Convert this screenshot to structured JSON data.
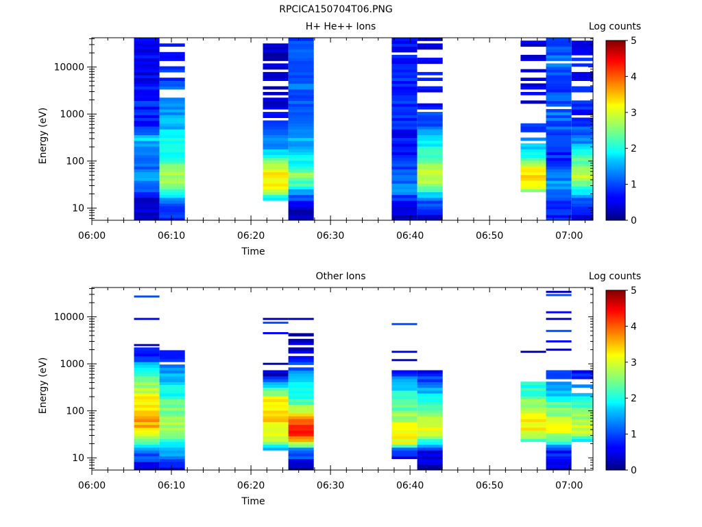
{
  "page": {
    "title": "RPCICA150704T06.PNG"
  },
  "chart_data": [
    {
      "type": "heatmap",
      "title": "H+ He++ Ions",
      "xlabel": "Time",
      "ylabel": "Energy (eV)",
      "x_ticks": [
        "06:00",
        "06:10",
        "06:20",
        "06:30",
        "06:40",
        "06:50",
        "07:00"
      ],
      "y_ticks": [
        "10",
        "100",
        "1000",
        "10000"
      ],
      "y_scale": "log",
      "ylim": [
        5.5,
        42000
      ],
      "x_range_minutes": [
        0,
        63
      ],
      "colorbar": {
        "label": "Log counts",
        "ticks": [
          "0",
          "1",
          "2",
          "3",
          "4",
          "5"
        ],
        "range": [
          0,
          5
        ],
        "colormap": "jet"
      },
      "columns": [
        {
          "t0": 5.3,
          "t1": 8.5,
          "profile": [
            [
              5.5,
              0.3
            ],
            [
              16,
              0.4
            ],
            [
              25,
              1.1
            ],
            [
              40,
              1.3
            ],
            [
              100,
              1.15
            ],
            [
              300,
              1.6
            ],
            [
              700,
              0.7
            ],
            [
              2000,
              0.8
            ],
            [
              5000,
              0.6
            ],
            [
              40000,
              0.5
            ]
          ],
          "gap_prob": 0.0,
          "above": 0
        },
        {
          "t0": 8.5,
          "t1": 11.7,
          "profile": [
            [
              5.5,
              0.6
            ],
            [
              12,
              1.1
            ],
            [
              20,
              1.9
            ],
            [
              35,
              2.7
            ],
            [
              70,
              2.8
            ],
            [
              120,
              2.1
            ],
            [
              250,
              1.9
            ],
            [
              800,
              1.4
            ],
            [
              2000,
              1.1
            ],
            [
              8000,
              0.9
            ],
            [
              40000,
              0.7
            ]
          ],
          "gap_prob": 0.45,
          "above": 2000
        },
        {
          "t0": 21.5,
          "t1": 24.7,
          "profile": [
            [
              15,
              1.6
            ],
            [
              25,
              2.9
            ],
            [
              45,
              3.3
            ],
            [
              70,
              3.1
            ],
            [
              110,
              2.2
            ],
            [
              200,
              1.4
            ],
            [
              500,
              0.8
            ],
            [
              1500,
              0.5
            ],
            [
              5000,
              0.4
            ],
            [
              40000,
              0.3
            ]
          ],
          "gap_prob": 0.45,
          "above": 700
        },
        {
          "t0": 24.7,
          "t1": 27.9,
          "profile": [
            [
              5.5,
              0.2
            ],
            [
              10,
              0.4
            ],
            [
              20,
              1.2
            ],
            [
              30,
              2.2
            ],
            [
              50,
              2.6
            ],
            [
              100,
              1.9
            ],
            [
              200,
              1.6
            ],
            [
              500,
              1.3
            ],
            [
              1500,
              1.1
            ],
            [
              5000,
              1.1
            ],
            [
              40000,
              1.0
            ]
          ],
          "gap_prob": 0.0,
          "above": 0
        },
        {
          "t0": 37.7,
          "t1": 40.9,
          "profile": [
            [
              5.5,
              0.3
            ],
            [
              15,
              0.8
            ],
            [
              25,
              1.3
            ],
            [
              40,
              1.1
            ],
            [
              80,
              0.9
            ],
            [
              200,
              0.7
            ],
            [
              500,
              0.7
            ],
            [
              2000,
              0.8
            ],
            [
              8000,
              0.8
            ],
            [
              40000,
              0.7
            ]
          ],
          "gap_prob": 0.12,
          "above": 1500
        },
        {
          "t0": 40.9,
          "t1": 44.1,
          "profile": [
            [
              5.5,
              0.2
            ],
            [
              16,
              1.2
            ],
            [
              30,
              2.8
            ],
            [
              60,
              3.0
            ],
            [
              110,
              2.3
            ],
            [
              250,
              1.7
            ],
            [
              700,
              0.9
            ],
            [
              2000,
              0.7
            ],
            [
              8000,
              0.6
            ],
            [
              40000,
              0.5
            ]
          ],
          "gap_prob": 0.45,
          "above": 1000
        },
        {
          "t0": 53.9,
          "t1": 57.1,
          "profile": [
            [
              21,
              2.0
            ],
            [
              30,
              3.2
            ],
            [
              50,
              3.4
            ],
            [
              80,
              3.0
            ],
            [
              130,
              2.0
            ],
            [
              250,
              1.4
            ],
            [
              600,
              0.8
            ],
            [
              2000,
              0.5
            ],
            [
              8000,
              0.4
            ],
            [
              40000,
              0.4
            ]
          ],
          "gap_prob": 0.5,
          "above": 250
        },
        {
          "t0": 57.1,
          "t1": 60.3,
          "profile": [
            [
              5.5,
              0.8
            ],
            [
              15,
              1.0
            ],
            [
              30,
              1.4
            ],
            [
              60,
              1.2
            ],
            [
              100,
              0.8
            ],
            [
              300,
              0.9
            ],
            [
              1000,
              1.2
            ],
            [
              3000,
              1.0
            ],
            [
              10000,
              1.1
            ],
            [
              40000,
              1.0
            ]
          ],
          "gap_prob": 0.15,
          "above": 1000
        },
        {
          "t0": 60.3,
          "t1": 63.0,
          "profile": [
            [
              5.5,
              0.3
            ],
            [
              15,
              0.9
            ],
            [
              20,
              1.8
            ],
            [
              35,
              2.6
            ],
            [
              60,
              2.9
            ],
            [
              100,
              2.4
            ],
            [
              200,
              1.5
            ],
            [
              600,
              0.9
            ],
            [
              2000,
              0.7
            ],
            [
              8000,
              0.7
            ],
            [
              40000,
              0.6
            ]
          ],
          "gap_prob": 0.35,
          "above": 300
        }
      ]
    },
    {
      "type": "heatmap",
      "title": "Other Ions",
      "xlabel": "Time",
      "ylabel": "Energy (eV)",
      "x_ticks": [
        "06:00",
        "06:10",
        "06:20",
        "06:30",
        "06:40",
        "06:50",
        "07:00"
      ],
      "y_ticks": [
        "10",
        "100",
        "1000",
        "10000"
      ],
      "y_scale": "log",
      "ylim": [
        5.5,
        42000
      ],
      "x_range_minutes": [
        0,
        63
      ],
      "colorbar": {
        "label": "Log counts",
        "ticks": [
          "0",
          "1",
          "2",
          "3",
          "4",
          "5"
        ],
        "range": [
          0,
          5
        ],
        "colormap": "jet"
      },
      "columns": [
        {
          "t0": 5.3,
          "t1": 8.5,
          "profile": [
            [
              5.5,
              0.5
            ],
            [
              12,
              1.0
            ],
            [
              20,
              2.0
            ],
            [
              30,
              3.1
            ],
            [
              60,
              3.6
            ],
            [
              150,
              3.2
            ],
            [
              400,
              2.6
            ],
            [
              800,
              1.8
            ],
            [
              1500,
              0.7
            ]
          ],
          "gap_prob": 0.0,
          "above": 0,
          "cutoff": 2000,
          "isolated": [
            2500,
            9000,
            27000
          ]
        },
        {
          "t0": 8.5,
          "t1": 11.7,
          "profile": [
            [
              5.5,
              0.5
            ],
            [
              12,
              1.3
            ],
            [
              20,
              2.0
            ],
            [
              30,
              2.6
            ],
            [
              60,
              2.7
            ],
            [
              150,
              2.3
            ],
            [
              400,
              1.7
            ],
            [
              800,
              1.3
            ],
            [
              1500,
              0.7
            ]
          ],
          "gap_prob": 0.3,
          "above": 900,
          "cutoff": 1900,
          "isolated": []
        },
        {
          "t0": 21.5,
          "t1": 24.7,
          "profile": [
            [
              15,
              1.6
            ],
            [
              25,
              2.9
            ],
            [
              50,
              3.2
            ],
            [
              100,
              3.3
            ],
            [
              200,
              3.0
            ],
            [
              400,
              1.5
            ],
            [
              600,
              0.3
            ]
          ],
          "gap_prob": 0.0,
          "above": 0,
          "cutoff": 650,
          "isolated": [
            1000,
            4500,
            7500,
            9000
          ]
        },
        {
          "t0": 24.7,
          "t1": 27.9,
          "profile": [
            [
              5.5,
              0.2
            ],
            [
              15,
              1.3
            ],
            [
              20,
              2.8
            ],
            [
              30,
              4.2
            ],
            [
              60,
              4.1
            ],
            [
              80,
              3.2
            ],
            [
              150,
              2.3
            ],
            [
              300,
              1.9
            ],
            [
              800,
              1.2
            ],
            [
              1500,
              0.4
            ]
          ],
          "gap_prob": 0.3,
          "above": 900,
          "cutoff": 4500,
          "isolated": [
            9000
          ]
        },
        {
          "t0": 37.7,
          "t1": 40.9,
          "profile": [
            [
              10,
              0.5
            ],
            [
              16,
              1.2
            ],
            [
              20,
              3.0
            ],
            [
              50,
              3.1
            ],
            [
              100,
              2.4
            ],
            [
              250,
              2.0
            ],
            [
              500,
              1.3
            ],
            [
              650,
              0.6
            ]
          ],
          "gap_prob": 0.0,
          "above": 0,
          "cutoff": 700,
          "isolated": [
            1200,
            1800,
            7000
          ]
        },
        {
          "t0": 40.9,
          "t1": 44.1,
          "profile": [
            [
              5.5,
              0.3
            ],
            [
              15,
              0.6
            ],
            [
              20,
              1.8
            ],
            [
              40,
              3.2
            ],
            [
              60,
              2.8
            ],
            [
              120,
              2.3
            ],
            [
              300,
              1.5
            ],
            [
              600,
              0.7
            ]
          ],
          "gap_prob": 0.0,
          "above": 0,
          "cutoff": 700,
          "isolated": []
        },
        {
          "t0": 53.9,
          "t1": 57.1,
          "profile": [
            [
              21,
              2.0
            ],
            [
              30,
              3.0
            ],
            [
              60,
              3.2
            ],
            [
              100,
              3.0
            ],
            [
              200,
              2.3
            ],
            [
              380,
              1.9
            ]
          ],
          "gap_prob": 0.0,
          "above": 0,
          "cutoff": 380,
          "isolated": [
            1800
          ]
        },
        {
          "t0": 57.1,
          "t1": 60.3,
          "profile": [
            [
              5.5,
              0.4
            ],
            [
              15,
              0.8
            ],
            [
              20,
              1.8
            ],
            [
              40,
              3.2
            ],
            [
              80,
              2.6
            ],
            [
              150,
              2.3
            ],
            [
              300,
              1.3
            ],
            [
              800,
              0.7
            ]
          ],
          "gap_prob": 0.25,
          "above": 400,
          "cutoff": 800,
          "isolated": [
            2000,
            3000,
            5000,
            9000,
            12500,
            29000,
            34000
          ]
        },
        {
          "t0": 60.3,
          "t1": 63.0,
          "profile": [
            [
              21,
              1.6
            ],
            [
              30,
              2.6
            ],
            [
              50,
              3.0
            ],
            [
              100,
              2.4
            ],
            [
              200,
              1.7
            ],
            [
              400,
              1.0
            ],
            [
              900,
              0.5
            ]
          ],
          "gap_prob": 0.45,
          "above": 250,
          "cutoff": 900,
          "isolated": []
        }
      ]
    }
  ]
}
